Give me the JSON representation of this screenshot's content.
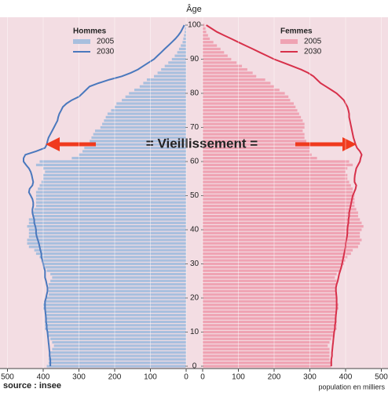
{
  "chart_data": {
    "type": "pyramid",
    "y_label": "Âge",
    "x_label": "population en milliers",
    "source": "source : insee",
    "annotation": "= Vieillissement =",
    "y": [
      0,
      1,
      2,
      3,
      4,
      5,
      6,
      7,
      8,
      9,
      10,
      11,
      12,
      13,
      14,
      15,
      16,
      17,
      18,
      19,
      20,
      21,
      22,
      23,
      24,
      25,
      26,
      27,
      28,
      29,
      30,
      31,
      32,
      33,
      34,
      35,
      36,
      37,
      38,
      39,
      40,
      41,
      42,
      43,
      44,
      45,
      46,
      47,
      48,
      49,
      50,
      51,
      52,
      53,
      54,
      55,
      56,
      57,
      58,
      59,
      60,
      61,
      62,
      63,
      64,
      65,
      66,
      67,
      68,
      69,
      70,
      71,
      72,
      73,
      74,
      75,
      76,
      77,
      78,
      79,
      80,
      81,
      82,
      83,
      84,
      85,
      86,
      87,
      88,
      89,
      90,
      91,
      92,
      93,
      94,
      95,
      96,
      97,
      98,
      99,
      100
    ],
    "ylim": [
      0,
      100
    ],
    "yticks": [
      0,
      10,
      20,
      30,
      40,
      50,
      60,
      70,
      80,
      90,
      100
    ],
    "xlim": [
      0,
      500
    ],
    "xticks": [
      0,
      100,
      200,
      300,
      400,
      500
    ],
    "sides": [
      {
        "title": "Hommes",
        "side": "left",
        "series": [
          {
            "name": "2005",
            "style": "bar",
            "color": "#a8bfde",
            "values": [
              390,
              385,
              385,
              380,
              380,
              375,
              370,
              375,
              380,
              385,
              390,
              395,
              395,
              395,
              395,
              395,
              395,
              400,
              400,
              395,
              390,
              385,
              385,
              385,
              385,
              380,
              375,
              380,
              390,
              395,
              400,
              405,
              410,
              420,
              425,
              440,
              445,
              445,
              440,
              440,
              440,
              445,
              440,
              440,
              430,
              430,
              425,
              420,
              420,
              420,
              420,
              420,
              415,
              410,
              405,
              400,
              400,
              395,
              400,
              420,
              410,
              320,
              300,
              290,
              285,
              275,
              270,
              265,
              260,
              255,
              240,
              235,
              230,
              225,
              220,
              210,
              200,
              195,
              180,
              170,
              160,
              145,
              130,
              120,
              110,
              90,
              80,
              70,
              60,
              50,
              40,
              32,
              25,
              20,
              15,
              10,
              8,
              6,
              4,
              3,
              2
            ]
          },
          {
            "name": "2030",
            "style": "line",
            "color": "#4a78bd",
            "values": [
              380,
              380,
              380,
              382,
              382,
              383,
              384,
              385,
              386,
              387,
              388,
              390,
              390,
              392,
              392,
              393,
              394,
              395,
              395,
              395,
              392,
              390,
              388,
              388,
              390,
              392,
              395,
              395,
              395,
              398,
              400,
              402,
              405,
              405,
              408,
              410,
              412,
              415,
              418,
              420,
              420,
              422,
              425,
              425,
              428,
              430,
              430,
              428,
              428,
              430,
              435,
              440,
              438,
              430,
              428,
              430,
              432,
              435,
              440,
              448,
              455,
              455,
              450,
              420,
              395,
              390,
              388,
              385,
              380,
              375,
              370,
              365,
              360,
              358,
              355,
              350,
              345,
              335,
              320,
              300,
              290,
              280,
              270,
              245,
              215,
              180,
              155,
              135,
              120,
              105,
              90,
              80,
              70,
              60,
              50,
              40,
              30,
              22,
              15,
              10,
              5
            ]
          }
        ]
      },
      {
        "title": "Femmes",
        "side": "right",
        "series": [
          {
            "name": "2005",
            "style": "bar",
            "color": "#efa3b3",
            "values": [
              360,
              360,
              355,
              355,
              355,
              355,
              350,
              355,
              360,
              365,
              370,
              375,
              375,
              375,
              375,
              375,
              375,
              380,
              380,
              375,
              375,
              375,
              375,
              375,
              375,
              375,
              370,
              375,
              385,
              390,
              395,
              400,
              405,
              415,
              420,
              435,
              440,
              445,
              440,
              440,
              445,
              450,
              445,
              440,
              435,
              435,
              430,
              425,
              425,
              425,
              425,
              420,
              420,
              415,
              410,
              405,
              405,
              400,
              405,
              420,
              410,
              320,
              305,
              300,
              300,
              290,
              290,
              285,
              285,
              280,
              285,
              285,
              280,
              275,
              270,
              265,
              260,
              255,
              245,
              240,
              230,
              215,
              200,
              190,
              175,
              150,
              140,
              125,
              110,
              95,
              80,
              70,
              60,
              50,
              40,
              30,
              20,
              15,
              10,
              8,
              5
            ]
          },
          {
            "name": "2030",
            "style": "line",
            "color": "#d7304a",
            "values": [
              360,
              360,
              360,
              362,
              362,
              363,
              364,
              365,
              366,
              367,
              368,
              370,
              370,
              372,
              372,
              373,
              374,
              375,
              375,
              375,
              375,
              374,
              373,
              373,
              375,
              378,
              380,
              382,
              385,
              388,
              390,
              392,
              394,
              396,
              398,
              400,
              400,
              402,
              404,
              405,
              405,
              406,
              408,
              408,
              410,
              410,
              412,
              414,
              416,
              418,
              420,
              424,
              428,
              430,
              425,
              425,
              426,
              428,
              430,
              435,
              440,
              442,
              445,
              440,
              432,
              428,
              425,
              422,
              420,
              418,
              416,
              414,
              412,
              410,
              410,
              408,
              405,
              400,
              395,
              385,
              375,
              360,
              345,
              330,
              320,
              310,
              295,
              275,
              250,
              225,
              200,
              180,
              160,
              140,
              120,
              100,
              80,
              60,
              40,
              25,
              10
            ]
          }
        ]
      }
    ]
  }
}
